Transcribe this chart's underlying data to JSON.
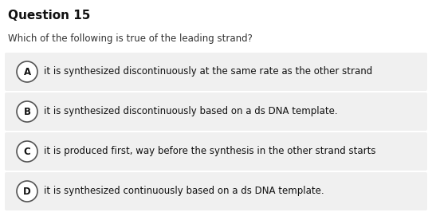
{
  "title": "Question 15",
  "question": "Which of the following is true of the leading strand?",
  "options": [
    {
      "label": "A",
      "text": "it is synthesized discontinuously at the same rate as the other strand"
    },
    {
      "label": "B",
      "text": "it is synthesized discontinuously based on a ds DNA template."
    },
    {
      "label": "C",
      "text": "it is produced first, way before the synthesis in the other strand starts"
    },
    {
      "label": "D",
      "text": "it is synthesized continuously based on a ds DNA template."
    }
  ],
  "bg_color": "#ffffff",
  "option_bg_color": "#f0f0f0",
  "title_fontsize": 11,
  "question_fontsize": 8.5,
  "option_fontsize": 8.5,
  "title_color": "#111111",
  "question_color": "#333333",
  "option_text_color": "#111111",
  "circle_edge_color": "#555555",
  "circle_face_color": "#ffffff",
  "label_color": "#111111"
}
